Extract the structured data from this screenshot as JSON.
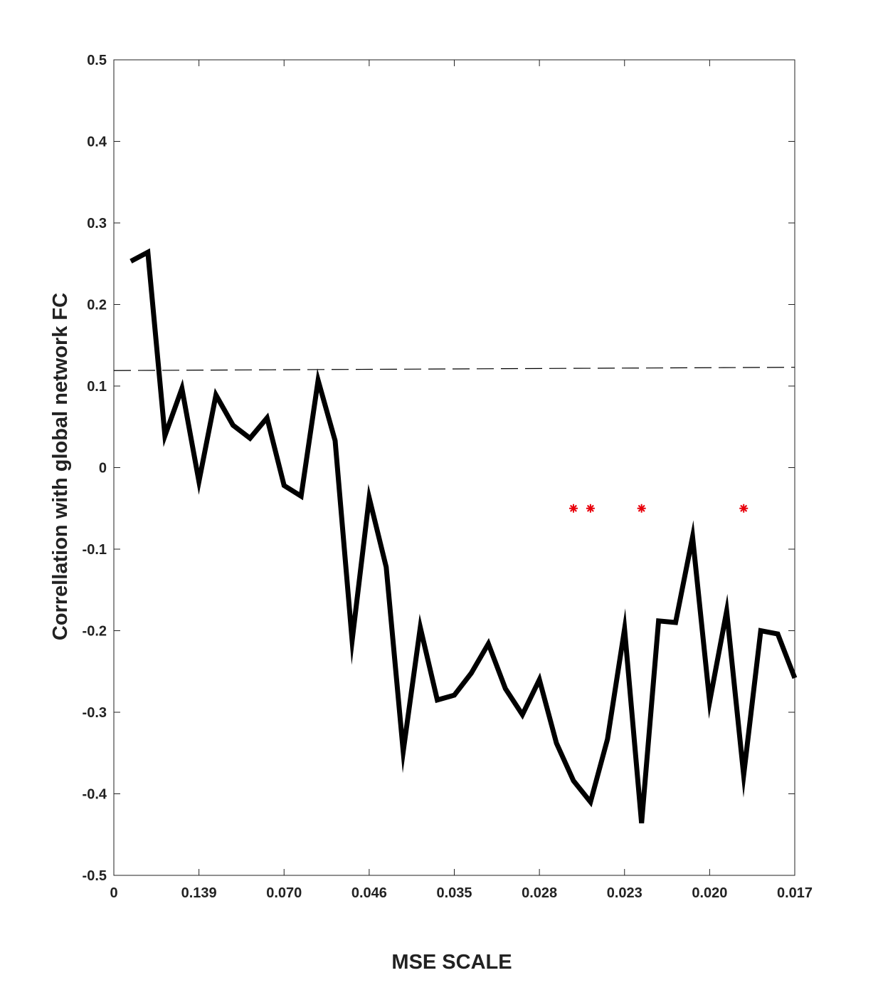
{
  "chart_data": {
    "type": "line",
    "xlabel": "MSE SCALE",
    "ylabel": "Correllation with global network FC",
    "x_tick_labels": [
      "0",
      "0.139",
      "0.070",
      "0.046",
      "0.035",
      "0.028",
      "0.023",
      "0.020",
      "0.017"
    ],
    "xlim": [
      0,
      40
    ],
    "ylim": [
      -0.5,
      0.5
    ],
    "y_ticks": [
      -0.5,
      -0.4,
      -0.3,
      -0.2,
      -0.1,
      0,
      0.1,
      0.2,
      0.3,
      0.4,
      0.5
    ],
    "y_tick_labels": [
      "-0.5",
      "-0.4",
      "-0.3",
      "-0.2",
      "-0.1",
      "0",
      "0.1",
      "0.2",
      "0.3",
      "0.4",
      "0.5"
    ],
    "grid": false,
    "series": [
      {
        "color": "#000000",
        "x": [
          1,
          2,
          3,
          4,
          5,
          6,
          7,
          8,
          9,
          10,
          11,
          12,
          13,
          14,
          15,
          16,
          17,
          18,
          19,
          20,
          21,
          22,
          23,
          24,
          25,
          26,
          27,
          28,
          29,
          30,
          31,
          32,
          33,
          34,
          35,
          36,
          37,
          38,
          39,
          40
        ],
        "y": [
          0.253,
          0.264,
          0.039,
          0.097,
          -0.017,
          0.089,
          0.052,
          0.036,
          0.061,
          -0.022,
          -0.035,
          0.107,
          0.033,
          -0.212,
          -0.037,
          -0.122,
          -0.348,
          -0.196,
          -0.285,
          -0.279,
          -0.252,
          -0.216,
          -0.271,
          -0.303,
          -0.26,
          -0.338,
          -0.384,
          -0.41,
          -0.333,
          -0.198,
          -0.436,
          -0.188,
          -0.19,
          -0.085,
          -0.287,
          -0.176,
          -0.377,
          -0.2,
          -0.204,
          -0.258
        ]
      }
    ],
    "threshold_line": {
      "x": [
        0,
        40
      ],
      "y": [
        0.119,
        0.123
      ],
      "color": "#000000",
      "style": "dashed"
    },
    "significance_markers": {
      "x": [
        27,
        28,
        31,
        37
      ],
      "y": [
        -0.05,
        -0.05,
        -0.05,
        -0.05
      ],
      "symbol": "*",
      "color": "#e8000b"
    }
  }
}
